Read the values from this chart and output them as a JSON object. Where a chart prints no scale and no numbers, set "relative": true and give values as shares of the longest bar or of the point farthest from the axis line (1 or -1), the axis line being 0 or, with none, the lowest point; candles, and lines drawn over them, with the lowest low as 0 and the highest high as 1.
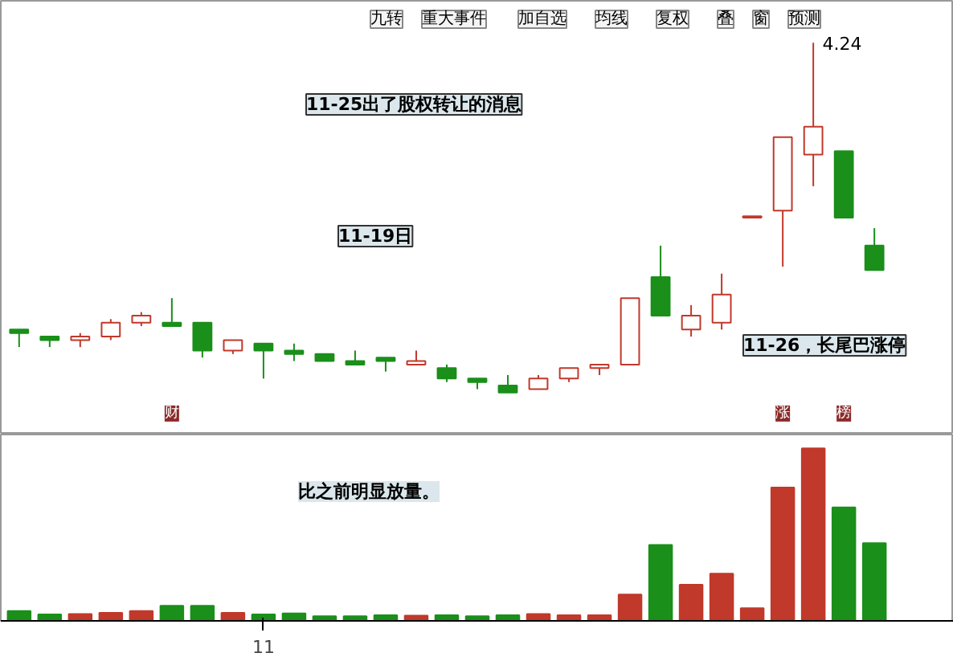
{
  "chart_data": [
    {
      "type": "candlestick",
      "relative": true,
      "tick_labels": false,
      "categories": [
        null,
        null,
        null,
        null,
        null,
        null,
        null,
        null,
        null,
        null,
        null,
        null,
        null,
        null,
        null,
        null,
        null,
        null,
        null,
        null,
        null,
        null,
        null,
        null,
        null,
        null,
        null,
        null,
        null
      ],
      "ohlc": [
        [
          0.18,
          0.18,
          0.13,
          0.17
        ],
        [
          0.16,
          0.16,
          0.13,
          0.15
        ],
        [
          0.15,
          0.17,
          0.13,
          0.16
        ],
        [
          0.16,
          0.21,
          0.15,
          0.2
        ],
        [
          0.2,
          0.23,
          0.19,
          0.22
        ],
        [
          0.2,
          0.27,
          0.19,
          0.19
        ],
        [
          0.2,
          0.2,
          0.1,
          0.12
        ],
        [
          0.12,
          0.15,
          0.11,
          0.15
        ],
        [
          0.14,
          0.14,
          0.04,
          0.12
        ],
        [
          0.12,
          0.14,
          0.09,
          0.11
        ],
        [
          0.11,
          0.11,
          0.09,
          0.09
        ],
        [
          0.09,
          0.12,
          0.08,
          0.08
        ],
        [
          0.1,
          0.1,
          0.06,
          0.09
        ],
        [
          0.08,
          0.12,
          0.08,
          0.09
        ],
        [
          0.07,
          0.08,
          0.03,
          0.04
        ],
        [
          0.04,
          0.04,
          0.01,
          0.03
        ],
        [
          0.02,
          0.05,
          0.0,
          0.0
        ],
        [
          0.01,
          0.05,
          0.01,
          0.04
        ],
        [
          0.04,
          0.07,
          0.03,
          0.07
        ],
        [
          0.07,
          0.08,
          0.05,
          0.08
        ],
        [
          0.08,
          0.27,
          0.08,
          0.27
        ],
        [
          0.33,
          0.42,
          0.22,
          0.22
        ],
        [
          0.18,
          0.25,
          0.16,
          0.22
        ],
        [
          0.2,
          0.34,
          0.18,
          0.28
        ],
        [
          0.5,
          0.5,
          0.5,
          0.5
        ],
        [
          0.52,
          0.73,
          0.36,
          0.73
        ],
        [
          0.68,
          1.0,
          0.59,
          0.76
        ],
        [
          0.69,
          0.69,
          0.5,
          0.5
        ],
        [
          0.42,
          0.47,
          0.35,
          0.35
        ]
      ],
      "colors": [
        "#1a8f1a",
        "#1a8f1a",
        "#c0392b",
        "#c0392b",
        "#c0392b",
        "#1a8f1a",
        "#1a8f1a",
        "#c0392b",
        "#1a8f1a",
        "#1a8f1a",
        "#1a8f1a",
        "#1a8f1a",
        "#1a8f1a",
        "#c0392b",
        "#1a8f1a",
        "#1a8f1a",
        "#1a8f1a",
        "#c0392b",
        "#c0392b",
        "#c0392b",
        "#c0392b",
        "#1a8f1a",
        "#c0392b",
        "#c0392b",
        "#c0392b",
        "#c0392b",
        "#c0392b",
        "#1a8f1a",
        "#1a8f1a"
      ],
      "annotations": [
        "九转",
        "重大事件",
        "加自选",
        "均线",
        "复权",
        "叠",
        "窗",
        "预测",
        "4.24",
        "11-25出了股权转让的消息",
        "11-19日",
        "11-26，长尾巴涨停",
        "财",
        "涨",
        "榜"
      ]
    },
    {
      "type": "bar",
      "relative": true,
      "tick_labels": "x",
      "categories": [
        null,
        null,
        null,
        null,
        null,
        null,
        null,
        null,
        "11",
        null,
        null,
        null,
        null,
        null,
        null,
        null,
        null,
        null,
        null,
        null,
        null,
        null,
        null,
        null,
        null,
        null,
        null,
        null,
        null
      ],
      "values": [
        0.057,
        0.037,
        0.04,
        0.047,
        0.057,
        0.087,
        0.087,
        0.047,
        0.037,
        0.043,
        0.027,
        0.027,
        0.033,
        0.03,
        0.033,
        0.027,
        0.033,
        0.04,
        0.033,
        0.033,
        0.153,
        0.44,
        0.21,
        0.273,
        0.073,
        0.773,
        1,
        0.657,
        0.45
      ],
      "colors": [
        "#1a8f1a",
        "#1a8f1a",
        "#c0392b",
        "#c0392b",
        "#c0392b",
        "#1a8f1a",
        "#1a8f1a",
        "#c0392b",
        "#1a8f1a",
        "#1a8f1a",
        "#1a8f1a",
        "#1a8f1a",
        "#1a8f1a",
        "#c0392b",
        "#1a8f1a",
        "#1a8f1a",
        "#1a8f1a",
        "#c0392b",
        "#c0392b",
        "#c0392b",
        "#c0392b",
        "#1a8f1a",
        "#c0392b",
        "#c0392b",
        "#c0392b",
        "#c0392b",
        "#c0392b",
        "#1a8f1a",
        "#1a8f1a"
      ],
      "annotations": [
        "比之前明显放量。"
      ]
    }
  ]
}
